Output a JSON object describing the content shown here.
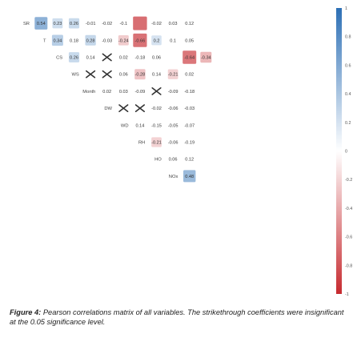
{
  "chart_data": {
    "type": "heatmap",
    "variables": [
      "SR",
      "T",
      "CS",
      "WS",
      "Month",
      "DW",
      "WD",
      "RH",
      "HO",
      "NOx"
    ],
    "row_labels": [
      "SR",
      "T",
      "CS",
      "WS",
      "Month",
      "DW",
      "WD",
      "RH",
      "HO",
      "NOx"
    ],
    "column_labels": [
      "",
      "",
      "",
      "",
      "",
      "",
      "",
      "",
      "",
      "",
      "",
      "",
      ""
    ],
    "cells": [
      [
        {
          "label": "0.54",
          "r": 0.54,
          "sig": true
        },
        {
          "label": "0.23",
          "r": 0.23,
          "sig": true
        },
        {
          "label": "0.26",
          "r": 0.26,
          "sig": true
        },
        {
          "label": "-0.01",
          "r": -0.01,
          "sig": true
        },
        {
          "label": "-0.02",
          "r": -0.02,
          "sig": true
        },
        {
          "label": "-0.1",
          "r": -0.1,
          "sig": true
        },
        {
          "label": "",
          "r": -0.68,
          "sig": true
        },
        {
          "label": "-0.02",
          "r": -0.02,
          "sig": true
        },
        {
          "label": "0.03",
          "r": 0.03,
          "sig": true
        },
        {
          "label": "0.12",
          "r": 0.12,
          "sig": true
        }
      ],
      [
        {
          "label": "0.34",
          "r": 0.34,
          "sig": true
        },
        {
          "label": "0.18",
          "r": 0.18,
          "sig": true
        },
        {
          "label": "0.28",
          "r": 0.28,
          "sig": true
        },
        {
          "label": "-0.03",
          "r": -0.03,
          "sig": true
        },
        {
          "label": "-0.24",
          "r": -0.24,
          "sig": true
        },
        {
          "label": "-0.66",
          "r": -0.66,
          "sig": true
        },
        {
          "label": "0.2",
          "r": 0.2,
          "sig": true
        },
        {
          "label": "0.1",
          "r": 0.1,
          "sig": true
        },
        {
          "label": "0.05",
          "r": 0.05,
          "sig": true
        }
      ],
      [
        {
          "label": "0.26",
          "r": 0.26,
          "sig": true
        },
        {
          "label": "0.14",
          "r": 0.14,
          "sig": true
        },
        {
          "label": "",
          "r": 0.0,
          "sig": false
        },
        {
          "label": "0.02",
          "r": 0.02,
          "sig": true
        },
        {
          "label": "-0.18",
          "r": -0.18,
          "sig": true
        },
        {
          "label": "0.06",
          "r": 0.06,
          "sig": true
        },
        {
          "label": "",
          "r": -0.05,
          "sig": true
        },
        {
          "label": "-0.64",
          "r": -0.64,
          "sig": true
        },
        {
          "label": "-0.34",
          "r": -0.34,
          "sig": true
        }
      ],
      [
        {
          "label": "",
          "r": 0.0,
          "sig": false
        },
        {
          "label": "",
          "r": 0.0,
          "sig": false
        },
        {
          "label": "0.06",
          "r": 0.06,
          "sig": true
        },
        {
          "label": "-0.28",
          "r": -0.28,
          "sig": true
        },
        {
          "label": "0.14",
          "r": 0.14,
          "sig": true
        },
        {
          "label": "-0.21",
          "r": -0.21,
          "sig": true
        },
        {
          "label": "0.02",
          "r": 0.02,
          "sig": true
        }
      ],
      [
        {
          "label": "0.02",
          "r": 0.02,
          "sig": true
        },
        {
          "label": "0.03",
          "r": 0.03,
          "sig": true
        },
        {
          "label": "-0.09",
          "r": -0.09,
          "sig": true
        },
        {
          "label": "",
          "r": 0.0,
          "sig": false
        },
        {
          "label": "-0.09",
          "r": -0.09,
          "sig": true
        },
        {
          "label": "-0.18",
          "r": -0.18,
          "sig": true
        }
      ],
      [
        {
          "label": "",
          "r": 0.0,
          "sig": false
        },
        {
          "label": "",
          "r": 0.0,
          "sig": false
        },
        {
          "label": "-0.02",
          "r": -0.02,
          "sig": true
        },
        {
          "label": "-0.06",
          "r": -0.06,
          "sig": true
        },
        {
          "label": "-0.03",
          "r": -0.03,
          "sig": true
        }
      ],
      [
        {
          "label": "0.14",
          "r": 0.14,
          "sig": true
        },
        {
          "label": "-0.15",
          "r": -0.15,
          "sig": true
        },
        {
          "label": "-0.05",
          "r": -0.05,
          "sig": true
        },
        {
          "label": "-0.07",
          "r": -0.07,
          "sig": true
        }
      ],
      [
        {
          "label": "-0.21",
          "r": -0.21,
          "sig": true
        },
        {
          "label": "-0.06",
          "r": -0.06,
          "sig": true
        },
        {
          "label": "-0.19",
          "r": -0.19,
          "sig": true
        }
      ],
      [
        {
          "label": "0.06",
          "r": 0.06,
          "sig": true
        },
        {
          "label": "0.12",
          "r": 0.12,
          "sig": true
        }
      ],
      [
        {
          "label": "0.48",
          "r": 0.48,
          "sig": true
        }
      ]
    ],
    "colorbar": {
      "range": [
        -1,
        1
      ],
      "tick_labels": [
        "1",
        "0.8",
        "0.6",
        "0.4",
        "0.2",
        "0",
        "-0.2",
        "-0.4",
        "-0.6",
        "-0.8",
        "-1"
      ],
      "colors": {
        "positive": "#2c6fb5",
        "negative": "#c62a2f",
        "neutral": "#ffffff"
      }
    },
    "title": "",
    "xlabel": "",
    "ylabel": ""
  },
  "caption": {
    "lead": "Figure 4:",
    "text": " Pearson correlations matrix of all variables. The strikethrough coefficients were insignificant at the 0.05 significance level."
  }
}
